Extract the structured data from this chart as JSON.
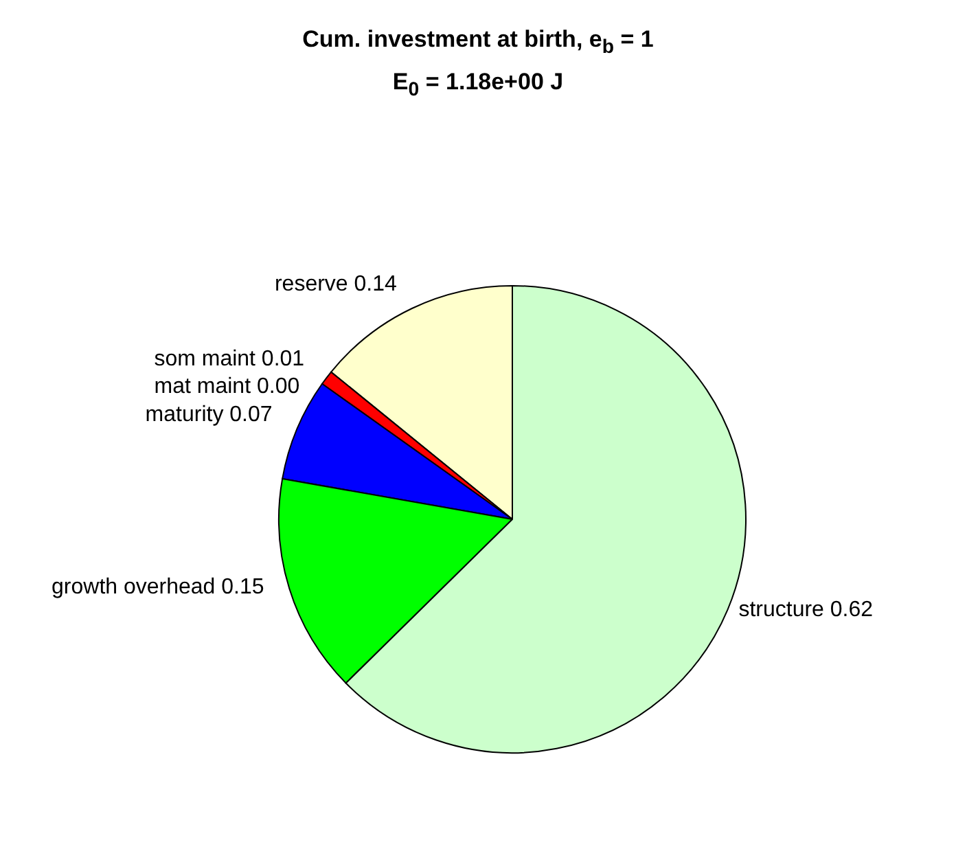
{
  "chart_data": {
    "type": "pie",
    "title": "Cum. investment at birth, e$_{b}$ = 1",
    "subtitle": "E$_{0}$ = 1.18e+00 J",
    "categories": [
      "reserve",
      "som maint",
      "mat maint",
      "maturity",
      "growth overhead",
      "structure"
    ],
    "values": [
      0.14,
      0.01,
      0,
      0.07,
      0.15,
      0.62
    ],
    "value_labels": [
      "0.14",
      "0.01",
      "0.00",
      "0.07",
      "0.15",
      "0.62"
    ],
    "colors": [
      "#ffffcc",
      "#ff0000",
      "#ff00ff",
      "#0000ff",
      "#00ff00",
      "#ccffcc"
    ],
    "legend": false
  }
}
